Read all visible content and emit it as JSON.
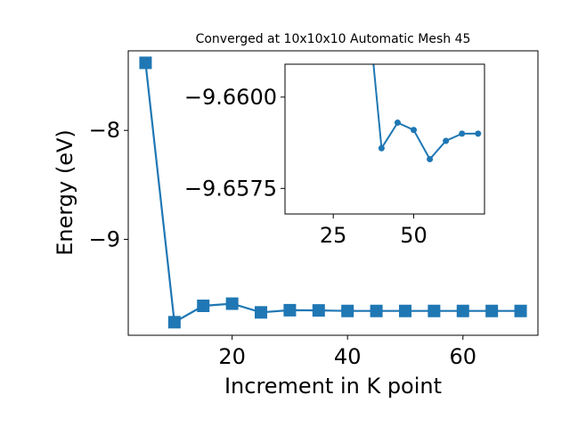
{
  "chart_data": [
    {
      "type": "line",
      "title": "Converged at 10x10x10 Automatic Mesh 45",
      "xlabel": "Increment in K point",
      "ylabel": "Energy (eV)",
      "xlim": [
        2,
        73
      ],
      "ylim": [
        -9.88,
        -7.27
      ],
      "xticks": [
        20,
        40,
        60
      ],
      "yticks": [
        -8,
        -9
      ],
      "ytick_labels": [
        "−8",
        "−9"
      ],
      "grid": false,
      "marker": "square",
      "color": "#1f77b4",
      "series": [
        {
          "x": [
            5,
            10,
            15,
            20,
            25,
            30,
            35,
            40,
            45,
            50,
            55,
            60,
            65,
            70
          ],
          "values": [
            -7.38,
            -9.76,
            -9.61,
            -9.59,
            -9.67,
            -9.65,
            -9.652,
            -9.657,
            -9.657,
            -9.657,
            -9.657,
            -9.657,
            -9.657,
            -9.657
          ]
        }
      ]
    },
    {
      "type": "line",
      "title": "",
      "xlabel": "",
      "ylabel": "",
      "inset": true,
      "xlim": [
        10,
        72
      ],
      "ylim": [
        -9.6568,
        -9.6609
      ],
      "xticks": [
        25,
        50
      ],
      "yticks": [
        -9.66,
        -9.6575
      ],
      "ytick_labels": [
        "−9.6600",
        "−9.6575"
      ],
      "grid": false,
      "marker": "circle",
      "color": "#1f77b4",
      "series": [
        {
          "x": [
            35,
            40,
            45,
            50,
            55,
            60,
            65,
            70
          ],
          "values": [
            -9.6632,
            -9.6586,
            -9.6593,
            -9.6591,
            -9.6583,
            -9.6588,
            -9.659,
            -9.659
          ]
        }
      ]
    }
  ]
}
